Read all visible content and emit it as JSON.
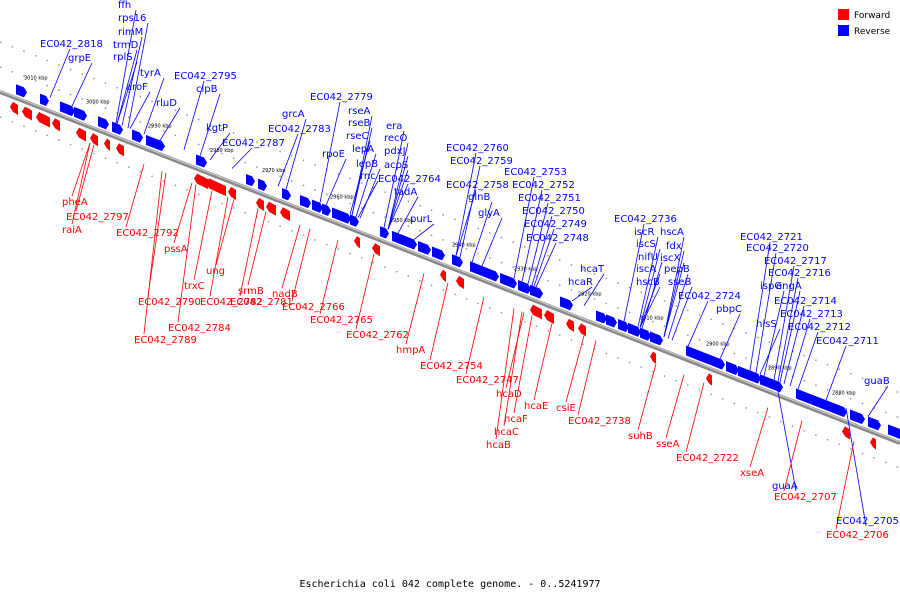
{
  "caption": "Escherichia coli 042 complete genome. - 0..5241977",
  "legend": [
    {
      "label": "Forward",
      "color": "#ff0000"
    },
    {
      "label": "Reverse",
      "color": "#0000ff"
    }
  ],
  "colors": {
    "forward": "#ff0000",
    "reverse": "#0000ff",
    "backbone": "#a0a0a0"
  },
  "ticks": [
    "3010 kbp",
    "3000 kbp",
    "2990 kbp",
    "2980 kbp",
    "2970 kbp",
    "2960 kbp",
    "2950 kbp",
    "2940 kbp",
    "2930 kbp",
    "2920 kbp",
    "2910 kbp",
    "2900 kbp",
    "2890 kbp",
    "2880 kbp"
  ],
  "reverse_labels": [
    "ffh",
    "rps16",
    "rimM",
    "trmD",
    "rplS",
    "EC042_2818",
    "grpE",
    "tyrA",
    "aroF",
    "rluD",
    "EC042_2795",
    "clpB",
    "kgtP",
    "EC042_2787",
    "grcA",
    "EC042_2783",
    "EC042_2779",
    "rseA",
    "rseB",
    "rseC",
    "rpoE",
    "lepA",
    "lepB",
    "rnc",
    "era",
    "recO",
    "pdxJ",
    "acpS",
    "EC042_2764",
    "tadA",
    "purL",
    "EC042_2760",
    "EC042_2759",
    "EC042_2758",
    "glnB",
    "glyA",
    "EC042_2753",
    "EC042_2752",
    "EC042_2751",
    "EC042_2750",
    "EC042_2749",
    "EC042_2748",
    "hcaT",
    "hcaR",
    "EC042_2736",
    "iscR",
    "iscS",
    "nifU",
    "iscA",
    "hscB",
    "hscA",
    "fdx",
    "iscX",
    "pepB",
    "sseB",
    "EC042_2724",
    "pbpC",
    "EC042_2721",
    "EC042_2720",
    "EC042_2717",
    "EC042_2716",
    "ispG",
    "engA",
    "hisS",
    "EC042_2714",
    "EC042_2713",
    "EC042_2712",
    "EC042_2711",
    "guaB",
    "guaA",
    "EC042_2705"
  ],
  "forward_labels": [
    "pheA",
    "EC042_2797",
    "raiA",
    "EC042_2792",
    "pssA",
    "ung",
    "trxC",
    "srmB",
    "EC042_2790",
    "EC042_2782",
    "EC042_2781",
    "EC042_2784",
    "EC042_2789",
    "nadB",
    "EC042_2766",
    "EC042_2765",
    "EC042_2762",
    "hmpA",
    "EC042_2754",
    "EC042_2747",
    "hcaD",
    "hcaF",
    "hcaE",
    "hcaC",
    "hcaB",
    "csiE",
    "EC042_2738",
    "suhB",
    "sseA",
    "EC042_2722",
    "xseA",
    "EC042_2707",
    "EC042_2706"
  ]
}
